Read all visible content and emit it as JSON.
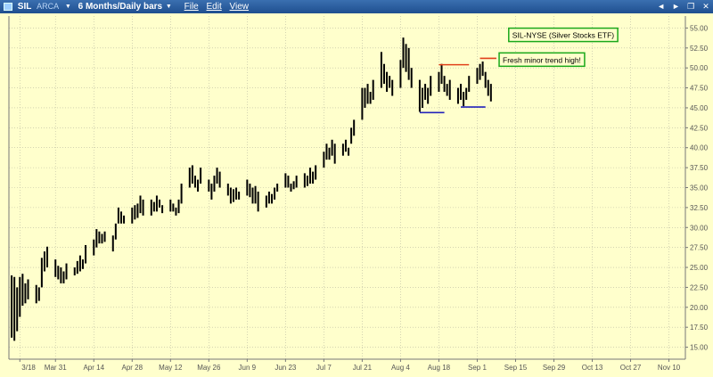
{
  "window": {
    "symbol": "SIL",
    "exchange": "ARCA",
    "period": "6 Months/Daily bars",
    "menu": [
      "File",
      "Edit",
      "View"
    ],
    "controls": {
      "back": "◄",
      "forward": "►",
      "restore": "❐",
      "close": "✕"
    }
  },
  "colors": {
    "background": "#ffffcc",
    "bars": "#000000",
    "resistance": "#e0401a",
    "support": "#2222bb",
    "annotation_border": "#1aa81a",
    "titlebar": "#2a5d9f"
  },
  "chart_data": {
    "type": "ohlc",
    "title": "SIL-NYSE (Silver Stocks ETF)",
    "ylim": [
      13.5,
      56.5
    ],
    "y_ticks": [
      15,
      17.5,
      20,
      22.5,
      25,
      27.5,
      30,
      32.5,
      35,
      37.5,
      40,
      42.5,
      45,
      47.5,
      50,
      52.5,
      55
    ],
    "y_tick_labels": [
      "15.00",
      "17.50",
      "20.00",
      "22.50",
      "25.00",
      "27.50",
      "30.00",
      "32.50",
      "35.00",
      "37.50",
      "40.00",
      "42.50",
      "45.00",
      "47.50",
      "50.00",
      "52.50",
      "55.00"
    ],
    "x_ticks": [
      {
        "label": "3/18",
        "day": 0
      },
      {
        "label": "Mar 31",
        "day": 13
      },
      {
        "label": "Apr 14",
        "day": 27
      },
      {
        "label": "Apr 28",
        "day": 41
      },
      {
        "label": "May 12",
        "day": 55
      },
      {
        "label": "May 26",
        "day": 69
      },
      {
        "label": "Jun 9",
        "day": 83
      },
      {
        "label": "Jun 23",
        "day": 97
      },
      {
        "label": "Jul 7",
        "day": 111
      },
      {
        "label": "Jul 21",
        "day": 125
      },
      {
        "label": "Aug 4",
        "day": 139
      },
      {
        "label": "Aug 18",
        "day": 153
      },
      {
        "label": "Sep 1",
        "day": 167
      },
      {
        "label": "Sep 15",
        "day": 181
      },
      {
        "label": "Sep 29",
        "day": 195
      },
      {
        "label": "Oct 13",
        "day": 209
      },
      {
        "label": "Oct 27",
        "day": 223
      },
      {
        "label": "Nov 10",
        "day": 237
      }
    ],
    "xlim": [
      -4,
      243
    ],
    "series": [
      {
        "bars": [
          {
            "day": -3,
            "h": 24.0,
            "l": 16.2
          },
          {
            "day": -2,
            "h": 23.8,
            "l": 15.8
          },
          {
            "day": -1,
            "h": 22.5,
            "l": 17.0
          },
          {
            "day": 0,
            "h": 23.8,
            "l": 18.8
          },
          {
            "day": 1,
            "h": 24.2,
            "l": 20.2
          },
          {
            "day": 2,
            "h": 23.0,
            "l": 20.5
          },
          {
            "day": 3,
            "h": 23.5,
            "l": 21.0
          },
          {
            "day": 6,
            "h": 22.8,
            "l": 20.5
          },
          {
            "day": 7,
            "h": 22.5,
            "l": 20.8
          },
          {
            "day": 8,
            "h": 26.2,
            "l": 22.5
          },
          {
            "day": 9,
            "h": 27.0,
            "l": 24.5
          },
          {
            "day": 10,
            "h": 27.6,
            "l": 25.0
          },
          {
            "day": 13,
            "h": 26.0,
            "l": 23.8
          },
          {
            "day": 14,
            "h": 25.2,
            "l": 23.5
          },
          {
            "day": 15,
            "h": 25.0,
            "l": 23.0
          },
          {
            "day": 16,
            "h": 24.5,
            "l": 23.0
          },
          {
            "day": 17,
            "h": 25.5,
            "l": 23.5
          },
          {
            "day": 20,
            "h": 25.0,
            "l": 24.0
          },
          {
            "day": 21,
            "h": 25.8,
            "l": 24.2
          },
          {
            "day": 22,
            "h": 26.5,
            "l": 24.5
          },
          {
            "day": 23,
            "h": 26.0,
            "l": 24.8
          },
          {
            "day": 24,
            "h": 27.8,
            "l": 25.5
          },
          {
            "day": 27,
            "h": 28.5,
            "l": 26.5
          },
          {
            "day": 28,
            "h": 29.8,
            "l": 27.5
          },
          {
            "day": 29,
            "h": 29.5,
            "l": 28.0
          },
          {
            "day": 30,
            "h": 29.2,
            "l": 28.0
          },
          {
            "day": 31,
            "h": 29.5,
            "l": 28.2
          },
          {
            "day": 34,
            "h": 29.0,
            "l": 27.0
          },
          {
            "day": 35,
            "h": 30.5,
            "l": 28.5
          },
          {
            "day": 36,
            "h": 32.5,
            "l": 30.5
          },
          {
            "day": 37,
            "h": 32.0,
            "l": 30.5
          },
          {
            "day": 38,
            "h": 31.5,
            "l": 30.5
          },
          {
            "day": 41,
            "h": 32.5,
            "l": 30.5
          },
          {
            "day": 42,
            "h": 32.8,
            "l": 31.0
          },
          {
            "day": 43,
            "h": 33.0,
            "l": 31.2
          },
          {
            "day": 44,
            "h": 34.0,
            "l": 31.8
          },
          {
            "day": 45,
            "h": 33.5,
            "l": 31.5
          },
          {
            "day": 48,
            "h": 33.5,
            "l": 31.5
          },
          {
            "day": 49,
            "h": 33.2,
            "l": 32.0
          },
          {
            "day": 50,
            "h": 34.0,
            "l": 32.0
          },
          {
            "day": 51,
            "h": 33.5,
            "l": 32.5
          },
          {
            "day": 52,
            "h": 32.8,
            "l": 31.8
          },
          {
            "day": 55,
            "h": 33.5,
            "l": 32.0
          },
          {
            "day": 56,
            "h": 33.0,
            "l": 32.0
          },
          {
            "day": 57,
            "h": 32.5,
            "l": 31.5
          },
          {
            "day": 58,
            "h": 33.5,
            "l": 31.8
          },
          {
            "day": 59,
            "h": 35.5,
            "l": 33.0
          },
          {
            "day": 62,
            "h": 37.5,
            "l": 35.0
          },
          {
            "day": 63,
            "h": 37.8,
            "l": 35.5
          },
          {
            "day": 64,
            "h": 36.5,
            "l": 35.0
          },
          {
            "day": 65,
            "h": 36.0,
            "l": 34.5
          },
          {
            "day": 66,
            "h": 37.5,
            "l": 35.5
          },
          {
            "day": 69,
            "h": 36.0,
            "l": 34.5
          },
          {
            "day": 70,
            "h": 35.5,
            "l": 33.5
          },
          {
            "day": 71,
            "h": 36.5,
            "l": 34.5
          },
          {
            "day": 72,
            "h": 37.5,
            "l": 35.5
          },
          {
            "day": 73,
            "h": 37.0,
            "l": 35.0
          },
          {
            "day": 76,
            "h": 35.5,
            "l": 34.0
          },
          {
            "day": 77,
            "h": 35.0,
            "l": 33.0
          },
          {
            "day": 78,
            "h": 34.8,
            "l": 33.2
          },
          {
            "day": 79,
            "h": 35.0,
            "l": 33.5
          },
          {
            "day": 80,
            "h": 34.5,
            "l": 33.5
          },
          {
            "day": 83,
            "h": 36.0,
            "l": 34.0
          },
          {
            "day": 84,
            "h": 35.5,
            "l": 33.8
          },
          {
            "day": 85,
            "h": 35.0,
            "l": 33.0
          },
          {
            "day": 86,
            "h": 35.2,
            "l": 33.0
          },
          {
            "day": 87,
            "h": 34.5,
            "l": 32.0
          },
          {
            "day": 90,
            "h": 34.0,
            "l": 32.5
          },
          {
            "day": 91,
            "h": 34.5,
            "l": 33.0
          },
          {
            "day": 92,
            "h": 34.2,
            "l": 33.0
          },
          {
            "day": 93,
            "h": 35.0,
            "l": 33.5
          },
          {
            "day": 94,
            "h": 35.5,
            "l": 34.5
          },
          {
            "day": 97,
            "h": 36.8,
            "l": 35.0
          },
          {
            "day": 98,
            "h": 36.5,
            "l": 35.0
          },
          {
            "day": 99,
            "h": 35.5,
            "l": 34.5
          },
          {
            "day": 100,
            "h": 35.8,
            "l": 34.8
          },
          {
            "day": 101,
            "h": 36.5,
            "l": 35.0
          },
          {
            "day": 104,
            "h": 36.8,
            "l": 35.0
          },
          {
            "day": 105,
            "h": 36.5,
            "l": 35.2
          },
          {
            "day": 106,
            "h": 37.5,
            "l": 35.5
          },
          {
            "day": 107,
            "h": 37.0,
            "l": 35.5
          },
          {
            "day": 108,
            "h": 37.8,
            "l": 36.0
          },
          {
            "day": 111,
            "h": 39.5,
            "l": 37.5
          },
          {
            "day": 112,
            "h": 40.5,
            "l": 38.5
          },
          {
            "day": 113,
            "h": 40.0,
            "l": 38.5
          },
          {
            "day": 114,
            "h": 41.0,
            "l": 39.0
          },
          {
            "day": 115,
            "h": 40.5,
            "l": 38.0
          },
          {
            "day": 118,
            "h": 40.5,
            "l": 39.0
          },
          {
            "day": 119,
            "h": 41.0,
            "l": 39.5
          },
          {
            "day": 120,
            "h": 40.0,
            "l": 39.0
          },
          {
            "day": 121,
            "h": 42.5,
            "l": 40.5
          },
          {
            "day": 122,
            "h": 43.5,
            "l": 41.5
          },
          {
            "day": 125,
            "h": 47.5,
            "l": 43.5
          },
          {
            "day": 126,
            "h": 47.5,
            "l": 45.0
          },
          {
            "day": 127,
            "h": 48.0,
            "l": 45.5
          },
          {
            "day": 128,
            "h": 47.0,
            "l": 45.5
          },
          {
            "day": 129,
            "h": 48.5,
            "l": 46.0
          },
          {
            "day": 132,
            "h": 52.0,
            "l": 47.5
          },
          {
            "day": 133,
            "h": 50.5,
            "l": 48.0
          },
          {
            "day": 134,
            "h": 49.5,
            "l": 47.0
          },
          {
            "day": 135,
            "h": 49.0,
            "l": 47.5
          },
          {
            "day": 136,
            "h": 48.5,
            "l": 46.5
          },
          {
            "day": 139,
            "h": 51.0,
            "l": 47.5
          },
          {
            "day": 140,
            "h": 53.8,
            "l": 50.0
          },
          {
            "day": 141,
            "h": 53.0,
            "l": 49.5
          },
          {
            "day": 142,
            "h": 52.5,
            "l": 48.5
          },
          {
            "day": 143,
            "h": 50.0,
            "l": 47.5
          },
          {
            "day": 146,
            "h": 48.5,
            "l": 44.5
          },
          {
            "day": 147,
            "h": 47.5,
            "l": 45.0
          },
          {
            "day": 148,
            "h": 48.0,
            "l": 46.0
          },
          {
            "day": 149,
            "h": 47.5,
            "l": 45.5
          },
          {
            "day": 150,
            "h": 49.0,
            "l": 46.5
          },
          {
            "day": 153,
            "h": 49.5,
            "l": 47.0
          },
          {
            "day": 154,
            "h": 50.5,
            "l": 48.0
          },
          {
            "day": 155,
            "h": 49.0,
            "l": 47.0
          },
          {
            "day": 156,
            "h": 48.0,
            "l": 46.5
          },
          {
            "day": 157,
            "h": 48.5,
            "l": 46.0
          },
          {
            "day": 160,
            "h": 47.5,
            "l": 45.5
          },
          {
            "day": 161,
            "h": 48.0,
            "l": 46.0
          },
          {
            "day": 162,
            "h": 47.0,
            "l": 45.2
          },
          {
            "day": 163,
            "h": 47.5,
            "l": 46.0
          },
          {
            "day": 164,
            "h": 49.0,
            "l": 47.0
          },
          {
            "day": 167,
            "h": 50.0,
            "l": 48.0
          },
          {
            "day": 168,
            "h": 50.5,
            "l": 48.5
          },
          {
            "day": 169,
            "h": 50.8,
            "l": 49.0
          },
          {
            "day": 170,
            "h": 49.5,
            "l": 47.5
          },
          {
            "day": 171,
            "h": 48.5,
            "l": 46.5
          },
          {
            "day": 172,
            "h": 48.0,
            "l": 45.8
          }
        ]
      }
    ],
    "trend_lines": [
      {
        "kind": "resistance",
        "x1": 153,
        "x2": 164,
        "y": 50.4
      },
      {
        "kind": "resistance",
        "x1": 168,
        "x2": 174,
        "y": 51.2
      },
      {
        "kind": "support",
        "x1": 146,
        "x2": 155,
        "y": 44.4
      },
      {
        "kind": "support",
        "x1": 161,
        "x2": 170,
        "y": 45.1
      }
    ],
    "annotations": [
      {
        "text": "SIL-NYSE (Silver Stocks ETF)",
        "x": 178.5,
        "y": 54.2
      },
      {
        "text": "Fresh minor trend high!",
        "x": 175,
        "y": 51.1
      }
    ]
  }
}
